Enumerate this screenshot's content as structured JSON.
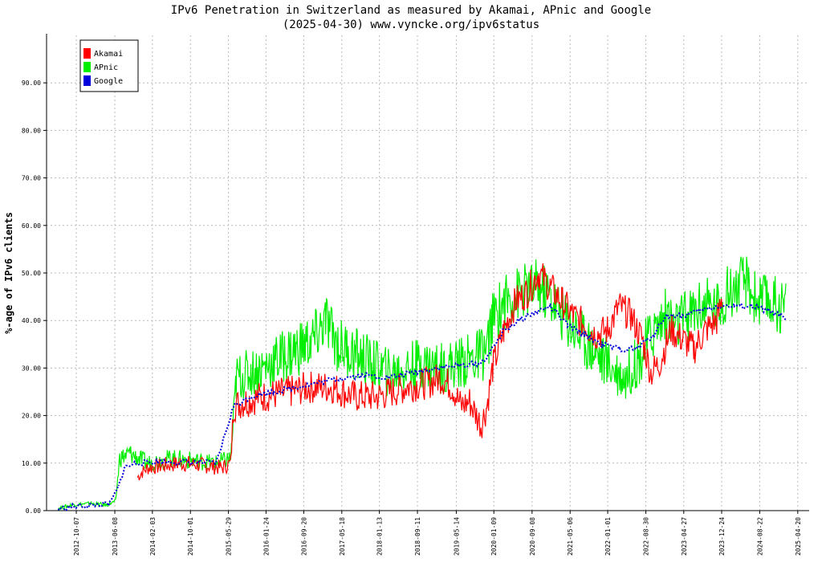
{
  "chart_data": {
    "type": "line",
    "title": "IPv6 Penetration in Switzerland as measured by Akamai, APnic and Google",
    "subtitle": "(2025-04-30) www.vyncke.org/ipv6status",
    "ylabel": "%-age of IPv6 clients",
    "xlabel": "",
    "ylim": [
      0,
      100
    ],
    "y_ticks": [
      "0.00",
      "10.00",
      "20.00",
      "30.00",
      "40.00",
      "50.00",
      "60.00",
      "70.00",
      "80.00",
      "90.00"
    ],
    "x_ticks": [
      "2012-10-07",
      "2013-06-08",
      "2014-02-03",
      "2014-10-01",
      "2015-05-29",
      "2016-01-24",
      "2016-09-20",
      "2017-05-18",
      "2018-01-13",
      "2018-09-11",
      "2019-05-14",
      "2020-01-09",
      "2020-09-08",
      "2021-05-06",
      "2022-01-01",
      "2022-08-30",
      "2023-04-27",
      "2023-12-24",
      "2024-08-22",
      "2025-04-20"
    ],
    "grid": true,
    "legend_position": "top-left",
    "series": [
      {
        "name": "Akamai",
        "color": "#ff0000",
        "points": [
          [
            2013.83,
            7
          ],
          [
            2013.9,
            8
          ],
          [
            2014.0,
            9
          ],
          [
            2014.3,
            9.5
          ],
          [
            2014.6,
            10
          ],
          [
            2015.0,
            9.5
          ],
          [
            2015.3,
            9
          ],
          [
            2015.45,
            10
          ],
          [
            2015.5,
            22
          ],
          [
            2015.7,
            23
          ],
          [
            2016.0,
            24
          ],
          [
            2016.5,
            25
          ],
          [
            2016.8,
            26
          ],
          [
            2017.2,
            26
          ],
          [
            2017.6,
            24
          ],
          [
            2018.0,
            24
          ],
          [
            2018.5,
            26
          ],
          [
            2018.9,
            27
          ],
          [
            2019.1,
            28
          ],
          [
            2019.3,
            26
          ],
          [
            2019.45,
            22
          ],
          [
            2019.6,
            23
          ],
          [
            2019.8,
            18
          ],
          [
            2019.9,
            22
          ],
          [
            2020.0,
            30
          ],
          [
            2020.2,
            38
          ],
          [
            2020.4,
            44
          ],
          [
            2020.6,
            46
          ],
          [
            2020.8,
            50
          ],
          [
            2021.0,
            47
          ],
          [
            2021.2,
            44
          ],
          [
            2021.4,
            41
          ],
          [
            2021.6,
            39
          ],
          [
            2021.8,
            37
          ],
          [
            2022.0,
            38
          ],
          [
            2022.2,
            43
          ],
          [
            2022.4,
            41
          ],
          [
            2022.6,
            36
          ],
          [
            2022.75,
            29
          ],
          [
            2022.9,
            31
          ],
          [
            2023.1,
            38
          ],
          [
            2023.3,
            36
          ],
          [
            2023.5,
            34
          ],
          [
            2023.7,
            38
          ],
          [
            2023.9,
            40
          ],
          [
            2024.0,
            45
          ]
        ]
      },
      {
        "name": "APnic",
        "color": "#00ee00",
        "points": [
          [
            2012.45,
            0.5
          ],
          [
            2012.7,
            1.2
          ],
          [
            2013.0,
            1.5
          ],
          [
            2013.3,
            1.2
          ],
          [
            2013.45,
            2
          ],
          [
            2013.52,
            11
          ],
          [
            2013.7,
            12
          ],
          [
            2014.0,
            10
          ],
          [
            2014.4,
            11
          ],
          [
            2014.8,
            10.5
          ],
          [
            2015.2,
            10
          ],
          [
            2015.45,
            11
          ],
          [
            2015.55,
            28
          ],
          [
            2015.8,
            29
          ],
          [
            2016.0,
            30
          ],
          [
            2016.3,
            32
          ],
          [
            2016.6,
            34
          ],
          [
            2016.9,
            36
          ],
          [
            2017.1,
            40
          ],
          [
            2017.3,
            35
          ],
          [
            2017.6,
            33
          ],
          [
            2017.9,
            31
          ],
          [
            2018.2,
            29
          ],
          [
            2018.5,
            30
          ],
          [
            2018.8,
            31
          ],
          [
            2019.1,
            30
          ],
          [
            2019.4,
            31
          ],
          [
            2019.7,
            32
          ],
          [
            2019.9,
            34
          ],
          [
            2020.0,
            40
          ],
          [
            2020.2,
            44
          ],
          [
            2020.5,
            46
          ],
          [
            2020.8,
            47
          ],
          [
            2021.0,
            45
          ],
          [
            2021.3,
            40
          ],
          [
            2021.6,
            36
          ],
          [
            2021.9,
            32
          ],
          [
            2022.1,
            30
          ],
          [
            2022.3,
            28
          ],
          [
            2022.6,
            33
          ],
          [
            2022.8,
            38
          ],
          [
            2023.0,
            41
          ],
          [
            2023.2,
            39
          ],
          [
            2023.4,
            41
          ],
          [
            2023.6,
            43
          ],
          [
            2023.9,
            43
          ],
          [
            2024.1,
            46
          ],
          [
            2024.4,
            48
          ],
          [
            2024.6,
            44
          ],
          [
            2024.8,
            44
          ],
          [
            2025.0,
            43
          ],
          [
            2025.1,
            43
          ]
        ]
      },
      {
        "name": "Google",
        "color": "#0000dd",
        "points": [
          [
            2012.45,
            0.3
          ],
          [
            2012.7,
            0.8
          ],
          [
            2013.0,
            1.1
          ],
          [
            2013.35,
            1.4
          ],
          [
            2013.5,
            5
          ],
          [
            2013.6,
            9
          ],
          [
            2013.8,
            10
          ],
          [
            2014.2,
            10.3
          ],
          [
            2014.7,
            10.2
          ],
          [
            2015.2,
            10
          ],
          [
            2015.5,
            22
          ],
          [
            2015.8,
            24
          ],
          [
            2016.2,
            25
          ],
          [
            2016.6,
            26
          ],
          [
            2017.0,
            27
          ],
          [
            2017.4,
            28
          ],
          [
            2017.8,
            28.5
          ],
          [
            2018.2,
            28
          ],
          [
            2018.6,
            29
          ],
          [
            2019.0,
            30
          ],
          [
            2019.4,
            30.5
          ],
          [
            2019.8,
            31
          ],
          [
            2020.0,
            34
          ],
          [
            2020.2,
            38
          ],
          [
            2020.6,
            41
          ],
          [
            2021.0,
            43
          ],
          [
            2021.3,
            39
          ],
          [
            2021.6,
            37
          ],
          [
            2021.9,
            35
          ],
          [
            2022.2,
            34
          ],
          [
            2022.5,
            34
          ],
          [
            2022.8,
            37
          ],
          [
            2023.0,
            41
          ],
          [
            2023.3,
            41
          ],
          [
            2023.6,
            42
          ],
          [
            2023.9,
            43
          ],
          [
            2024.2,
            43
          ],
          [
            2024.5,
            43
          ],
          [
            2024.8,
            42
          ],
          [
            2025.0,
            41
          ],
          [
            2025.1,
            40
          ]
        ]
      }
    ]
  }
}
